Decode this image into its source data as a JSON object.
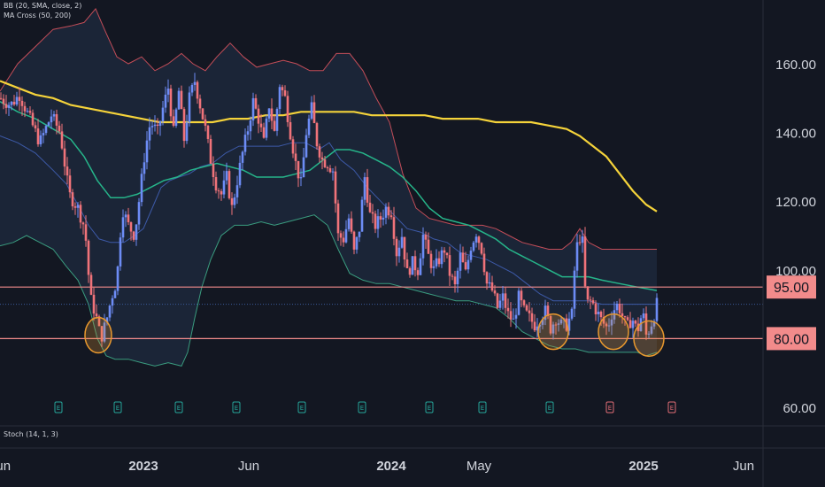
{
  "indicators": {
    "bb": "BB (20, SMA, close, 2)",
    "ma_cross": "MA Cross (50, 200)",
    "stoch": "Stoch (14, 1, 3)"
  },
  "colors": {
    "background": "#131722",
    "up": "#6d8cf5",
    "down": "#f0737a",
    "bb_basis": "#3d5aa8",
    "bb_upper": "#c44d58",
    "bb_lower": "#3a9c7f",
    "bb_fill": "#1b2639",
    "ma_fast": "#26b58a",
    "ma_slow": "#f5d33a",
    "level_line": "#f28b8b",
    "level_label_bg": "#f28b8b",
    "circle": "#e8982e",
    "axis_text": "#d1d4dc"
  },
  "chart_data": {
    "type": "candlestick",
    "y_axis": {
      "range": [
        55,
        177
      ],
      "ticks": [
        60,
        80,
        100,
        120,
        140,
        160
      ],
      "tick_labels": [
        "60.00",
        "80.00",
        "100.00",
        "120.00",
        "140.00",
        "160.00"
      ]
    },
    "x_axis": {
      "labels": [
        {
          "text": "Jun",
          "t": 0
        },
        {
          "text": "2023",
          "t": 162
        },
        {
          "text": "Jun",
          "t": 281
        },
        {
          "text": "2024",
          "t": 442
        },
        {
          "text": "May",
          "t": 541
        },
        {
          "text": "2025",
          "t": 727
        },
        {
          "text": "Jun",
          "t": 840
        }
      ]
    },
    "horizontal_levels": [
      {
        "value": 95,
        "label": "95.00"
      },
      {
        "value": 80,
        "label": "80.00"
      }
    ],
    "earnings_markers": [
      {
        "t": 66,
        "label": "E",
        "upcoming": false
      },
      {
        "t": 133,
        "label": "E",
        "upcoming": false
      },
      {
        "t": 202,
        "label": "E",
        "upcoming": false
      },
      {
        "t": 267,
        "label": "E",
        "upcoming": false
      },
      {
        "t": 341,
        "label": "E",
        "upcoming": false
      },
      {
        "t": 409,
        "label": "E",
        "upcoming": false
      },
      {
        "t": 485,
        "label": "E",
        "upcoming": false
      },
      {
        "t": 545,
        "label": "E",
        "upcoming": false
      },
      {
        "t": 621,
        "label": "E",
        "upcoming": false
      },
      {
        "t": 689,
        "label": "E",
        "upcoming": true
      },
      {
        "t": 759,
        "label": "E",
        "upcoming": true
      }
    ],
    "highlight_circles": [
      {
        "t": 111,
        "value": 81
      },
      {
        "t": 625,
        "value": 82
      },
      {
        "t": 693,
        "value": 82
      },
      {
        "t": 733,
        "value": 80
      }
    ],
    "price_anchors": [
      [
        0,
        150
      ],
      [
        12,
        148
      ],
      [
        22,
        151
      ],
      [
        32,
        145
      ],
      [
        45,
        137
      ],
      [
        58,
        145
      ],
      [
        68,
        140
      ],
      [
        78,
        122
      ],
      [
        88,
        118
      ],
      [
        96,
        112
      ],
      [
        102,
        92
      ],
      [
        108,
        87
      ],
      [
        114,
        80
      ],
      [
        120,
        85
      ],
      [
        126,
        92
      ],
      [
        132,
        97
      ],
      [
        138,
        118
      ],
      [
        145,
        113
      ],
      [
        152,
        110
      ],
      [
        158,
        122
      ],
      [
        164,
        135
      ],
      [
        170,
        143
      ],
      [
        178,
        140
      ],
      [
        184,
        147
      ],
      [
        190,
        153
      ],
      [
        196,
        140
      ],
      [
        202,
        152
      ],
      [
        208,
        138
      ],
      [
        214,
        150
      ],
      [
        220,
        155
      ],
      [
        226,
        148
      ],
      [
        232,
        141
      ],
      [
        238,
        132
      ],
      [
        244,
        125
      ],
      [
        250,
        122
      ],
      [
        256,
        127
      ],
      [
        262,
        118
      ],
      [
        268,
        126
      ],
      [
        274,
        134
      ],
      [
        280,
        141
      ],
      [
        286,
        149
      ],
      [
        292,
        144
      ],
      [
        298,
        137
      ],
      [
        304,
        148
      ],
      [
        310,
        140
      ],
      [
        316,
        154
      ],
      [
        322,
        150
      ],
      [
        328,
        140
      ],
      [
        334,
        131
      ],
      [
        340,
        125
      ],
      [
        346,
        140
      ],
      [
        352,
        147
      ],
      [
        358,
        137
      ],
      [
        364,
        132
      ],
      [
        370,
        131
      ],
      [
        376,
        129
      ],
      [
        382,
        110
      ],
      [
        388,
        109
      ],
      [
        394,
        115
      ],
      [
        400,
        105
      ],
      [
        406,
        112
      ],
      [
        412,
        127
      ],
      [
        418,
        116
      ],
      [
        424,
        113
      ],
      [
        430,
        115
      ],
      [
        436,
        118
      ],
      [
        442,
        117
      ],
      [
        448,
        105
      ],
      [
        454,
        110
      ],
      [
        460,
        99
      ],
      [
        466,
        102
      ],
      [
        472,
        100
      ],
      [
        478,
        110
      ],
      [
        484,
        104
      ],
      [
        490,
        100
      ],
      [
        496,
        103
      ],
      [
        502,
        106
      ],
      [
        508,
        99
      ],
      [
        514,
        95
      ],
      [
        520,
        104
      ],
      [
        526,
        99
      ],
      [
        532,
        107
      ],
      [
        538,
        111
      ],
      [
        544,
        106
      ],
      [
        550,
        96
      ],
      [
        556,
        94
      ],
      [
        562,
        89
      ],
      [
        568,
        92
      ],
      [
        574,
        87
      ],
      [
        580,
        85
      ],
      [
        586,
        92
      ],
      [
        592,
        88
      ],
      [
        598,
        86
      ],
      [
        604,
        84
      ],
      [
        610,
        86
      ],
      [
        616,
        88
      ],
      [
        622,
        83
      ],
      [
        628,
        86
      ],
      [
        634,
        84
      ],
      [
        640,
        84
      ],
      [
        646,
        87
      ],
      [
        650,
        104
      ],
      [
        654,
        110
      ],
      [
        658,
        108
      ],
      [
        662,
        90
      ],
      [
        668,
        91
      ],
      [
        674,
        88
      ],
      [
        680,
        85
      ],
      [
        686,
        83
      ],
      [
        692,
        88
      ],
      [
        698,
        90
      ],
      [
        704,
        86
      ],
      [
        708,
        83
      ],
      [
        714,
        86
      ],
      [
        720,
        82
      ],
      [
        726,
        88
      ],
      [
        730,
        81
      ],
      [
        734,
        83
      ],
      [
        738,
        86
      ],
      [
        742,
        90
      ]
    ],
    "bb_upper": [
      [
        0,
        152
      ],
      [
        20,
        160
      ],
      [
        40,
        165
      ],
      [
        60,
        170
      ],
      [
        80,
        171
      ],
      [
        95,
        172
      ],
      [
        108,
        176
      ],
      [
        118,
        170
      ],
      [
        132,
        162
      ],
      [
        145,
        160
      ],
      [
        160,
        162
      ],
      [
        175,
        158
      ],
      [
        190,
        160
      ],
      [
        205,
        163
      ],
      [
        218,
        160
      ],
      [
        232,
        158
      ],
      [
        245,
        162
      ],
      [
        260,
        166
      ],
      [
        275,
        162
      ],
      [
        290,
        159
      ],
      [
        305,
        160
      ],
      [
        320,
        161
      ],
      [
        335,
        160
      ],
      [
        350,
        158
      ],
      [
        365,
        158
      ],
      [
        380,
        163
      ],
      [
        395,
        163
      ],
      [
        410,
        158
      ],
      [
        425,
        150
      ],
      [
        440,
        143
      ],
      [
        455,
        128
      ],
      [
        470,
        118
      ],
      [
        485,
        115
      ],
      [
        500,
        114
      ],
      [
        515,
        113
      ],
      [
        530,
        113
      ],
      [
        545,
        113
      ],
      [
        560,
        112
      ],
      [
        575,
        110
      ],
      [
        590,
        108
      ],
      [
        605,
        107
      ],
      [
        620,
        106
      ],
      [
        635,
        106
      ],
      [
        645,
        108
      ],
      [
        655,
        112
      ],
      [
        665,
        108
      ],
      [
        680,
        106
      ],
      [
        700,
        106
      ],
      [
        720,
        106
      ],
      [
        742,
        106
      ]
    ],
    "bb_lower": [
      [
        0,
        107
      ],
      [
        15,
        108
      ],
      [
        30,
        110
      ],
      [
        45,
        108
      ],
      [
        60,
        106
      ],
      [
        75,
        101
      ],
      [
        88,
        97
      ],
      [
        100,
        90
      ],
      [
        110,
        80
      ],
      [
        120,
        75
      ],
      [
        130,
        74
      ],
      [
        145,
        74
      ],
      [
        160,
        73
      ],
      [
        175,
        72
      ],
      [
        190,
        73
      ],
      [
        205,
        72
      ],
      [
        212,
        76
      ],
      [
        220,
        86
      ],
      [
        228,
        95
      ],
      [
        238,
        103
      ],
      [
        250,
        110
      ],
      [
        265,
        113
      ],
      [
        280,
        113
      ],
      [
        295,
        114
      ],
      [
        310,
        113
      ],
      [
        325,
        114
      ],
      [
        340,
        115
      ],
      [
        355,
        116
      ],
      [
        370,
        113
      ],
      [
        382,
        106
      ],
      [
        395,
        99
      ],
      [
        410,
        97
      ],
      [
        425,
        96
      ],
      [
        440,
        96
      ],
      [
        455,
        95
      ],
      [
        470,
        94
      ],
      [
        485,
        93
      ],
      [
        500,
        92
      ],
      [
        515,
        91
      ],
      [
        530,
        91
      ],
      [
        545,
        90
      ],
      [
        560,
        89
      ],
      [
        575,
        86
      ],
      [
        590,
        82
      ],
      [
        605,
        80
      ],
      [
        620,
        78
      ],
      [
        635,
        77
      ],
      [
        650,
        77
      ],
      [
        665,
        76
      ],
      [
        680,
        76
      ],
      [
        700,
        76
      ],
      [
        720,
        76
      ],
      [
        730,
        75
      ],
      [
        742,
        76
      ]
    ],
    "bb_basis": [
      [
        0,
        139
      ],
      [
        20,
        137
      ],
      [
        40,
        134
      ],
      [
        60,
        129
      ],
      [
        75,
        125
      ],
      [
        90,
        118
      ],
      [
        100,
        113
      ],
      [
        112,
        109
      ],
      [
        125,
        108
      ],
      [
        140,
        108
      ],
      [
        152,
        110
      ],
      [
        162,
        112
      ],
      [
        172,
        118
      ],
      [
        182,
        124
      ],
      [
        192,
        126
      ],
      [
        202,
        127
      ],
      [
        214,
        128
      ],
      [
        226,
        130
      ],
      [
        240,
        131
      ],
      [
        255,
        134
      ],
      [
        270,
        136
      ],
      [
        285,
        136
      ],
      [
        300,
        136
      ],
      [
        315,
        136
      ],
      [
        330,
        137
      ],
      [
        345,
        137
      ],
      [
        360,
        135
      ],
      [
        372,
        137
      ],
      [
        385,
        132
      ],
      [
        400,
        129
      ],
      [
        415,
        124
      ],
      [
        430,
        120
      ],
      [
        445,
        116
      ],
      [
        460,
        112
      ],
      [
        475,
        111
      ],
      [
        490,
        109
      ],
      [
        505,
        108
      ],
      [
        520,
        105
      ],
      [
        535,
        104
      ],
      [
        550,
        103
      ],
      [
        565,
        101
      ],
      [
        580,
        99
      ],
      [
        595,
        96
      ],
      [
        610,
        93
      ],
      [
        625,
        91
      ],
      [
        640,
        91
      ],
      [
        650,
        91
      ],
      [
        665,
        91
      ],
      [
        680,
        90
      ],
      [
        700,
        90
      ],
      [
        720,
        90
      ],
      [
        742,
        90
      ]
    ],
    "ma_fast": [
      [
        0,
        149
      ],
      [
        20,
        146
      ],
      [
        40,
        144
      ],
      [
        60,
        141
      ],
      [
        80,
        138
      ],
      [
        95,
        133
      ],
      [
        110,
        126
      ],
      [
        125,
        121
      ],
      [
        140,
        121
      ],
      [
        155,
        122
      ],
      [
        170,
        124
      ],
      [
        185,
        126
      ],
      [
        200,
        127
      ],
      [
        215,
        129
      ],
      [
        230,
        130
      ],
      [
        245,
        131
      ],
      [
        260,
        130
      ],
      [
        275,
        129
      ],
      [
        290,
        127
      ],
      [
        305,
        127
      ],
      [
        320,
        127
      ],
      [
        335,
        128
      ],
      [
        350,
        129
      ],
      [
        365,
        132
      ],
      [
        380,
        135
      ],
      [
        395,
        135
      ],
      [
        410,
        134
      ],
      [
        425,
        132
      ],
      [
        440,
        130
      ],
      [
        455,
        127
      ],
      [
        470,
        123
      ],
      [
        485,
        118
      ],
      [
        500,
        115
      ],
      [
        515,
        114
      ],
      [
        530,
        113
      ],
      [
        545,
        111
      ],
      [
        560,
        109
      ],
      [
        575,
        106
      ],
      [
        590,
        104
      ],
      [
        605,
        102
      ],
      [
        620,
        100
      ],
      [
        635,
        98
      ],
      [
        650,
        98
      ],
      [
        665,
        98
      ],
      [
        680,
        97
      ],
      [
        700,
        96
      ],
      [
        720,
        95
      ],
      [
        742,
        94
      ]
    ],
    "ma_slow": [
      [
        0,
        155
      ],
      [
        20,
        153
      ],
      [
        40,
        151
      ],
      [
        60,
        150
      ],
      [
        80,
        148
      ],
      [
        100,
        147
      ],
      [
        120,
        146
      ],
      [
        140,
        145
      ],
      [
        160,
        144
      ],
      [
        180,
        143
      ],
      [
        200,
        143
      ],
      [
        220,
        143
      ],
      [
        240,
        143
      ],
      [
        260,
        144
      ],
      [
        280,
        144
      ],
      [
        300,
        145
      ],
      [
        320,
        145
      ],
      [
        340,
        146
      ],
      [
        360,
        146
      ],
      [
        380,
        146
      ],
      [
        400,
        146
      ],
      [
        420,
        145
      ],
      [
        440,
        145
      ],
      [
        460,
        145
      ],
      [
        480,
        145
      ],
      [
        500,
        144
      ],
      [
        520,
        144
      ],
      [
        540,
        144
      ],
      [
        560,
        143
      ],
      [
        580,
        143
      ],
      [
        600,
        143
      ],
      [
        620,
        142
      ],
      [
        640,
        141
      ],
      [
        655,
        139
      ],
      [
        670,
        136
      ],
      [
        685,
        133
      ],
      [
        700,
        128
      ],
      [
        715,
        123
      ],
      [
        730,
        119
      ],
      [
        742,
        117
      ]
    ],
    "last_price_line": 90
  }
}
